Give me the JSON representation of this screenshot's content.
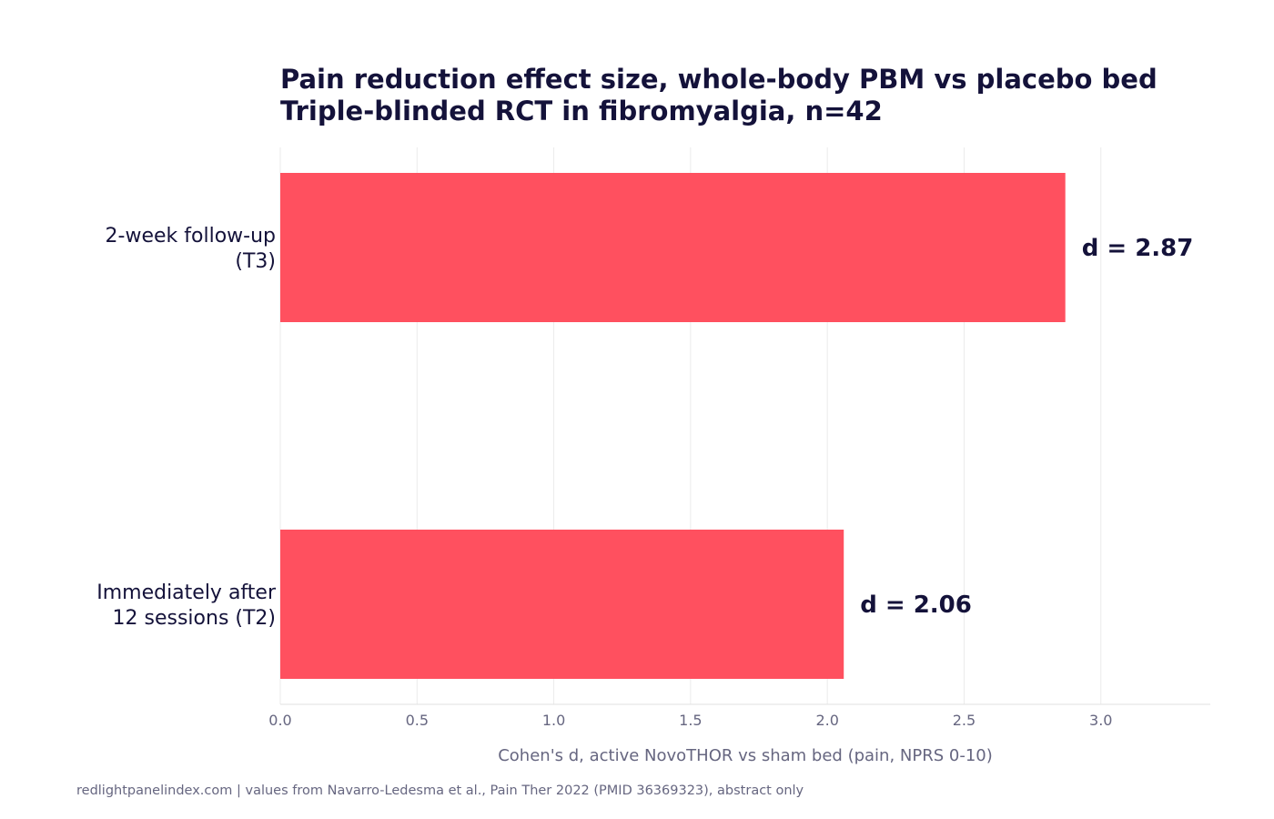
{
  "chart_data": {
    "type": "bar",
    "orientation": "horizontal",
    "title": [
      "Pain reduction effect size, whole-body PBM vs placebo bed",
      "Triple-blinded RCT in fibromyalgia, n=42"
    ],
    "categories": [
      [
        "2-week follow-up",
        "(T3)"
      ],
      [
        "Immediately after",
        "12 sessions (T2)"
      ]
    ],
    "values": [
      2.87,
      2.06
    ],
    "data_labels": [
      "d = 2.87",
      "d = 2.06"
    ],
    "xlabel": "Cohen's d, active NovoTHOR vs sham bed (pain, NPRS 0-10)",
    "ylabel": "",
    "xlim": [
      0,
      3.4
    ],
    "xticks": [
      0.0,
      0.5,
      1.0,
      1.5,
      2.0,
      2.5,
      3.0
    ],
    "xtick_labels": [
      "0.0",
      "0.5",
      "1.0",
      "1.5",
      "2.0",
      "2.5",
      "3.0"
    ],
    "grid": true,
    "legend": "none",
    "bar_color": "#ff505f",
    "text_color": "#14123a",
    "muted_color": "#666680"
  },
  "footnote": "redlightpanelindex.com | values from Navarro-Ledesma et al., Pain Ther 2022 (PMID 36369323), abstract only"
}
